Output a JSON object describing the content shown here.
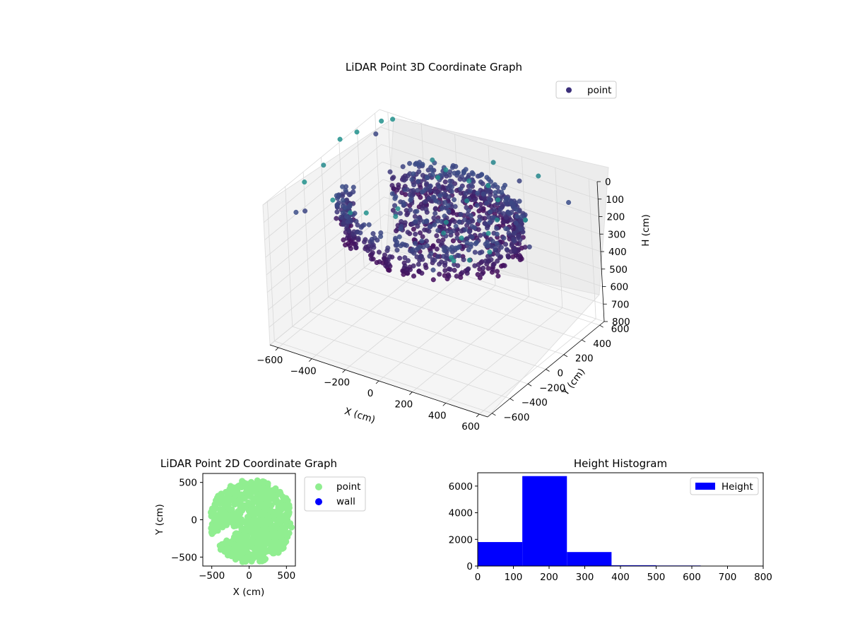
{
  "chart_data": [
    {
      "type": "scatter",
      "title": "LiDAR Point 3D Coordinate Graph",
      "xlabel": "X (cm)",
      "ylabel": "Y (cm)",
      "zlabel": "H (cm)",
      "xlim": [
        -650,
        650
      ],
      "ylim": [
        -650,
        650
      ],
      "zlim": [
        800,
        0
      ],
      "z_axis_inverted": true,
      "x_ticks": [
        -600,
        -400,
        -200,
        0,
        200,
        400,
        600
      ],
      "y_ticks": [
        -600,
        -400,
        -200,
        0,
        200,
        400,
        600
      ],
      "z_ticks": [
        0,
        100,
        200,
        300,
        400,
        500,
        600,
        700,
        800
      ],
      "grid": true,
      "legend": {
        "placement": "top-right",
        "entries": [
          "point"
        ]
      },
      "colormap": "viridis",
      "colors": {
        "marker": "#3b2f7a",
        "pane": "#f2f2f2"
      },
      "series": [
        {
          "name": "point",
          "description_ref": "ring",
          "samples": [
            [
              -450,
              -300,
              150
            ],
            [
              -500,
              0,
              120
            ],
            [
              -300,
              350,
              140
            ],
            [
              0,
              480,
              130
            ],
            [
              350,
              380,
              160
            ],
            [
              520,
              100,
              150
            ],
            [
              450,
              -250,
              170
            ],
            [
              200,
              -450,
              180
            ],
            [
              -150,
              -480,
              200
            ],
            [
              -400,
              -150,
              130
            ]
          ]
        }
      ]
    },
    {
      "type": "scatter",
      "title": "LiDAR Point 2D Coordinate Graph",
      "xlabel": "X (cm)",
      "ylabel": "Y (cm)",
      "xlim": [
        -620,
        620
      ],
      "ylim": [
        -620,
        620
      ],
      "x_ticks": [
        -500,
        0,
        500
      ],
      "y_ticks": [
        -500,
        0,
        500
      ],
      "legend": {
        "placement": "outside-right",
        "entries": [
          "point",
          "wall"
        ]
      },
      "colors": {
        "point": "#90ee90",
        "wall": "#0000ff"
      }
    },
    {
      "type": "bar",
      "title": "Height Histogram",
      "bin_edges": [
        0,
        125,
        250,
        375,
        500,
        625,
        750
      ],
      "values": [
        1800,
        6750,
        1050,
        60,
        40,
        5
      ],
      "xlim": [
        0,
        800
      ],
      "ylim": [
        0,
        7000
      ],
      "x_ticks": [
        0,
        100,
        200,
        300,
        400,
        500,
        600,
        700,
        800
      ],
      "y_ticks": [
        0,
        2000,
        4000,
        6000
      ],
      "legend": {
        "placement": "top-right",
        "entries": [
          "Height"
        ]
      },
      "colors": {
        "bar": "#0000ff"
      }
    }
  ]
}
